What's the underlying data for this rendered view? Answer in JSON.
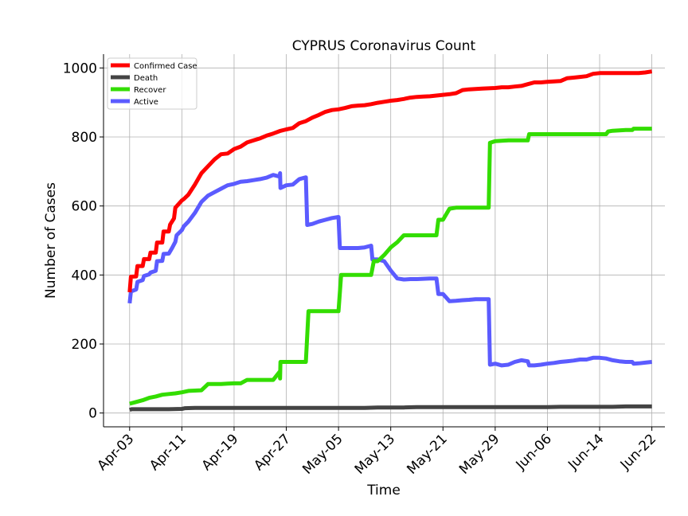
{
  "chart_data": {
    "type": "line",
    "title": "CYPRUS Coronavirus Count",
    "xlabel": "Time",
    "ylabel": "Number of Cases",
    "x_start_date": "2020-04-03",
    "x_tick_labels": [
      "Apr-03",
      "Apr-11",
      "Apr-19",
      "Apr-27",
      "May-05",
      "May-13",
      "May-21",
      "May-29",
      "Jun-06",
      "Jun-14",
      "Jun-22"
    ],
    "x_tick_days": [
      0,
      8,
      16,
      24,
      32,
      40,
      48,
      56,
      64,
      72,
      80
    ],
    "y_ticks": [
      0,
      200,
      400,
      600,
      800,
      1000
    ],
    "ylim": [
      -40,
      1040
    ],
    "xlim_days": [
      -4,
      82
    ],
    "grid": true,
    "legend_position": "top-left",
    "series": [
      {
        "name": "Confirmed Case",
        "color": "#ff0000",
        "points": [
          [
            0,
            350
          ],
          [
            0.2,
            395
          ],
          [
            1,
            396
          ],
          [
            1.2,
            426
          ],
          [
            2,
            426
          ],
          [
            2.2,
            446
          ],
          [
            3,
            446
          ],
          [
            3.2,
            465
          ],
          [
            4,
            465
          ],
          [
            4.2,
            494
          ],
          [
            5,
            494
          ],
          [
            5.2,
            526
          ],
          [
            6,
            526
          ],
          [
            6.2,
            546
          ],
          [
            6.8,
            564
          ],
          [
            7,
            595
          ],
          [
            8,
            616
          ],
          [
            8.3,
            620
          ],
          [
            9,
            633
          ],
          [
            10,
            662
          ],
          [
            11,
            695
          ],
          [
            12,
            715
          ],
          [
            13,
            735
          ],
          [
            14,
            750
          ],
          [
            15,
            752
          ],
          [
            16,
            765
          ],
          [
            17,
            772
          ],
          [
            18,
            784
          ],
          [
            19,
            790
          ],
          [
            20,
            796
          ],
          [
            21,
            804
          ],
          [
            22,
            810
          ],
          [
            23,
            817
          ],
          [
            24,
            822
          ],
          [
            25,
            826
          ],
          [
            26,
            840
          ],
          [
            27,
            846
          ],
          [
            28,
            856
          ],
          [
            29,
            864
          ],
          [
            30,
            873
          ],
          [
            31,
            878
          ],
          [
            32,
            880
          ],
          [
            33,
            884
          ],
          [
            34,
            889
          ],
          [
            35,
            891
          ],
          [
            36,
            892
          ],
          [
            37,
            895
          ],
          [
            38,
            899
          ],
          [
            39,
            902
          ],
          [
            40,
            905
          ],
          [
            41,
            907
          ],
          [
            42,
            910
          ],
          [
            43,
            914
          ],
          [
            44,
            916
          ],
          [
            45,
            917
          ],
          [
            46,
            918
          ],
          [
            47,
            920
          ],
          [
            48,
            922
          ],
          [
            49,
            924
          ],
          [
            50,
            927
          ],
          [
            51,
            936
          ],
          [
            52,
            938
          ],
          [
            53,
            939
          ],
          [
            54,
            940
          ],
          [
            55,
            941
          ],
          [
            56,
            942
          ],
          [
            57,
            944
          ],
          [
            58,
            944
          ],
          [
            59,
            946
          ],
          [
            60,
            948
          ],
          [
            61,
            953
          ],
          [
            62,
            958
          ],
          [
            63,
            958
          ],
          [
            64,
            960
          ],
          [
            65,
            961
          ],
          [
            66,
            962
          ],
          [
            67,
            970
          ],
          [
            68,
            972
          ],
          [
            69,
            974
          ],
          [
            70,
            976
          ],
          [
            71,
            983
          ],
          [
            72,
            985
          ],
          [
            73,
            985
          ],
          [
            74,
            985
          ],
          [
            75,
            985
          ],
          [
            76,
            985
          ],
          [
            77,
            985
          ],
          [
            78,
            985
          ],
          [
            79,
            987
          ],
          [
            80,
            990
          ]
        ]
      },
      {
        "name": "Death",
        "color": "#444444",
        "points": [
          [
            0,
            9
          ],
          [
            0.3,
            11
          ],
          [
            2,
            11
          ],
          [
            4,
            11
          ],
          [
            6,
            11
          ],
          [
            8,
            12
          ],
          [
            8.5,
            14
          ],
          [
            10,
            15
          ],
          [
            12,
            15
          ],
          [
            14,
            15
          ],
          [
            16,
            15
          ],
          [
            18,
            15
          ],
          [
            20,
            15
          ],
          [
            22,
            15
          ],
          [
            24,
            15
          ],
          [
            26,
            15
          ],
          [
            28,
            15
          ],
          [
            30,
            15
          ],
          [
            32,
            15
          ],
          [
            34,
            15
          ],
          [
            36,
            15
          ],
          [
            38,
            16
          ],
          [
            40,
            16
          ],
          [
            42,
            16
          ],
          [
            44,
            17
          ],
          [
            46,
            17
          ],
          [
            48,
            17
          ],
          [
            50,
            17
          ],
          [
            52,
            17
          ],
          [
            54,
            17
          ],
          [
            56,
            17
          ],
          [
            58,
            17
          ],
          [
            60,
            17
          ],
          [
            62,
            17
          ],
          [
            64,
            17
          ],
          [
            66,
            18
          ],
          [
            68,
            18
          ],
          [
            70,
            18
          ],
          [
            72,
            18
          ],
          [
            74,
            18
          ],
          [
            76,
            19
          ],
          [
            78,
            19
          ],
          [
            80,
            19
          ]
        ]
      },
      {
        "name": "Recover",
        "color": "#33dd00",
        "points": [
          [
            0,
            27
          ],
          [
            1,
            32
          ],
          [
            2,
            37
          ],
          [
            3,
            44
          ],
          [
            4,
            48
          ],
          [
            5,
            53
          ],
          [
            6,
            55
          ],
          [
            7,
            57
          ],
          [
            8,
            60
          ],
          [
            9,
            64
          ],
          [
            10,
            65
          ],
          [
            11,
            66
          ],
          [
            12,
            84
          ],
          [
            13,
            84
          ],
          [
            14,
            84
          ],
          [
            15,
            85
          ],
          [
            16,
            86
          ],
          [
            17,
            86
          ],
          [
            18,
            96
          ],
          [
            19,
            96
          ],
          [
            20,
            96
          ],
          [
            21,
            96
          ],
          [
            22,
            96
          ],
          [
            23,
            120
          ],
          [
            23.05,
            100
          ],
          [
            23.1,
            148
          ],
          [
            24,
            148
          ],
          [
            25,
            148
          ],
          [
            26,
            148
          ],
          [
            27,
            148
          ],
          [
            27.4,
            295
          ],
          [
            28,
            295
          ],
          [
            30,
            295
          ],
          [
            31,
            295
          ],
          [
            32,
            295
          ],
          [
            32.4,
            400
          ],
          [
            34,
            400
          ],
          [
            36,
            400
          ],
          [
            37,
            400
          ],
          [
            37.4,
            440
          ],
          [
            38,
            440
          ],
          [
            39,
            458
          ],
          [
            40,
            480
          ],
          [
            41,
            495
          ],
          [
            42,
            515
          ],
          [
            44,
            515
          ],
          [
            46,
            515
          ],
          [
            47,
            515
          ],
          [
            47.3,
            560
          ],
          [
            48,
            560
          ],
          [
            49,
            592
          ],
          [
            50,
            595
          ],
          [
            52,
            595
          ],
          [
            54,
            595
          ],
          [
            55,
            595
          ],
          [
            55.2,
            783
          ],
          [
            56,
            788
          ],
          [
            58,
            790
          ],
          [
            60,
            790
          ],
          [
            61,
            790
          ],
          [
            61.2,
            808
          ],
          [
            62,
            808
          ],
          [
            64,
            808
          ],
          [
            66,
            808
          ],
          [
            68,
            808
          ],
          [
            70,
            808
          ],
          [
            72,
            808
          ],
          [
            73,
            808
          ],
          [
            73.3,
            816
          ],
          [
            74,
            818
          ],
          [
            76,
            820
          ],
          [
            77,
            820
          ],
          [
            77.2,
            824
          ],
          [
            78,
            824
          ],
          [
            80,
            824
          ]
        ]
      },
      {
        "name": "Active",
        "color": "#5b5bff",
        "points": [
          [
            0,
            318
          ],
          [
            0.2,
            352
          ],
          [
            1,
            358
          ],
          [
            1.2,
            380
          ],
          [
            2,
            385
          ],
          [
            2.2,
            397
          ],
          [
            3,
            402
          ],
          [
            3.2,
            407
          ],
          [
            4,
            412
          ],
          [
            4.2,
            440
          ],
          [
            5,
            441
          ],
          [
            5.2,
            461
          ],
          [
            6,
            462
          ],
          [
            6.5,
            478
          ],
          [
            7,
            496
          ],
          [
            7.2,
            515
          ],
          [
            8,
            530
          ],
          [
            8.3,
            541
          ],
          [
            9,
            555
          ],
          [
            10,
            580
          ],
          [
            11,
            612
          ],
          [
            12,
            630
          ],
          [
            13,
            640
          ],
          [
            14,
            650
          ],
          [
            15,
            660
          ],
          [
            16,
            664
          ],
          [
            17,
            670
          ],
          [
            18,
            672
          ],
          [
            19,
            675
          ],
          [
            20,
            678
          ],
          [
            21,
            682
          ],
          [
            22,
            690
          ],
          [
            23,
            685
          ],
          [
            23.05,
            695
          ],
          [
            23.1,
            652
          ],
          [
            24,
            660
          ],
          [
            25,
            662
          ],
          [
            26,
            678
          ],
          [
            27,
            683
          ],
          [
            27.2,
            545
          ],
          [
            28,
            548
          ],
          [
            29,
            555
          ],
          [
            30,
            560
          ],
          [
            31,
            565
          ],
          [
            32,
            568
          ],
          [
            32.2,
            478
          ],
          [
            33,
            478
          ],
          [
            34,
            478
          ],
          [
            35,
            478
          ],
          [
            36,
            480
          ],
          [
            37,
            485
          ],
          [
            37.2,
            445
          ],
          [
            38,
            445
          ],
          [
            39,
            440
          ],
          [
            40,
            413
          ],
          [
            41,
            390
          ],
          [
            42,
            387
          ],
          [
            43,
            388
          ],
          [
            44,
            388
          ],
          [
            45,
            389
          ],
          [
            46,
            390
          ],
          [
            47,
            390
          ],
          [
            47.3,
            345
          ],
          [
            48,
            345
          ],
          [
            49,
            324
          ],
          [
            50,
            325
          ],
          [
            51,
            327
          ],
          [
            52,
            328
          ],
          [
            53,
            330
          ],
          [
            54,
            330
          ],
          [
            55,
            330
          ],
          [
            55.2,
            140
          ],
          [
            56,
            143
          ],
          [
            57,
            138
          ],
          [
            58,
            140
          ],
          [
            59,
            148
          ],
          [
            60,
            153
          ],
          [
            61,
            150
          ],
          [
            61.2,
            138
          ],
          [
            62,
            138
          ],
          [
            63,
            140
          ],
          [
            64,
            143
          ],
          [
            65,
            145
          ],
          [
            66,
            148
          ],
          [
            67,
            150
          ],
          [
            68,
            152
          ],
          [
            69,
            155
          ],
          [
            70,
            155
          ],
          [
            71,
            160
          ],
          [
            72,
            160
          ],
          [
            73,
            158
          ],
          [
            74,
            153
          ],
          [
            75,
            150
          ],
          [
            76,
            148
          ],
          [
            77,
            148
          ],
          [
            77.2,
            143
          ],
          [
            78,
            144
          ],
          [
            79,
            146
          ],
          [
            80,
            148
          ]
        ]
      }
    ]
  }
}
